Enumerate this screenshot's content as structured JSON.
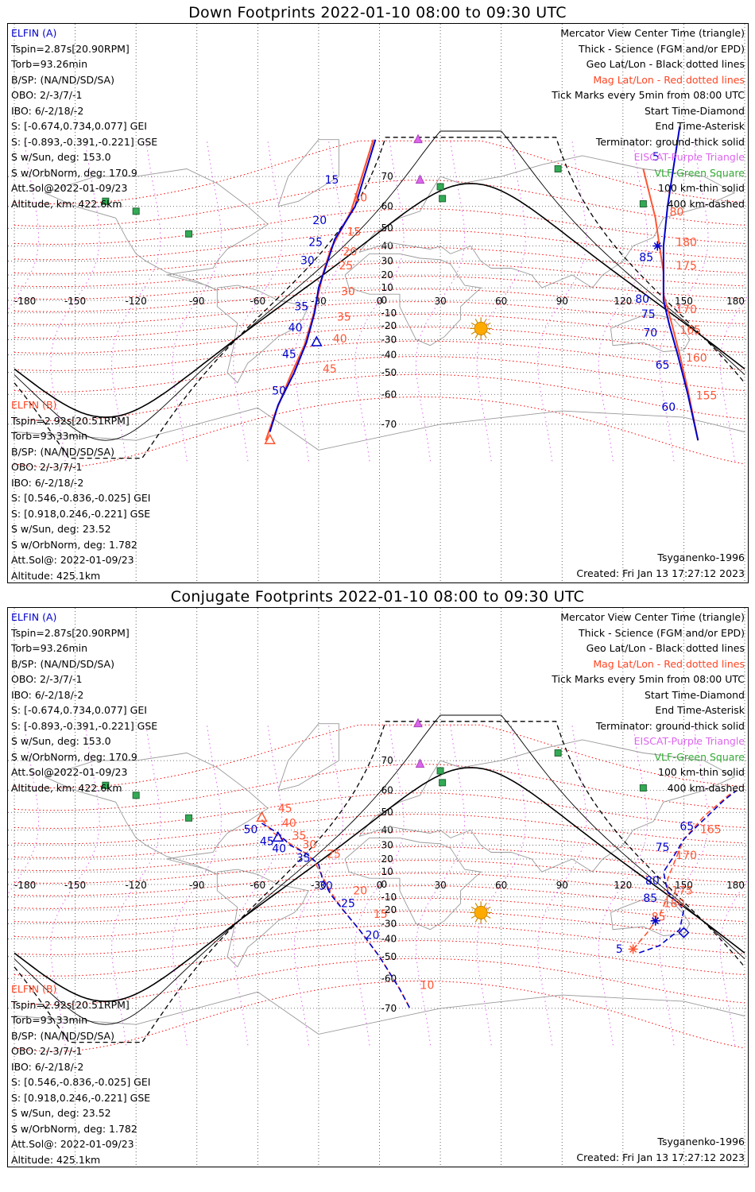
{
  "panels": [
    {
      "title": "Down Footprints 2022-01-10 08:00 to 09:30 UTC",
      "elfin_a": {
        "label": "ELFIN (A)",
        "lines": [
          "Tspin=2.87s[20.90RPM]",
          "Torb=93.26min",
          "B/SP: (NA/ND/SD/SA)",
          "OBO: 2/-3/7/-1",
          "IBO: 6/-2/18/-2",
          "S: [-0.674,0.734,0.077] GEI",
          "S: [-0.893,-0.391,-0.221] GSE",
          "S w/Sun, deg: 153.0",
          "S w/OrbNorm, deg: 170.9",
          "Att.Sol@2022-01-09/23",
          "Altitude, km: 422.6km"
        ]
      },
      "elfin_b": {
        "label": "ELFIN (B)",
        "lines": [
          "Tspin=2.92s[20.51RPM]",
          "Torb=93.33min",
          "B/SP: (NA/ND/SD/SA)",
          "OBO: 2/-3/7/-1",
          "IBO: 6/-2/18/-2",
          "S: [0.546,-0.836,-0.025] GEI",
          "S: [0.918,0.246,-0.221] GSE",
          "S w/Sun, deg: 23.52",
          "S w/OrbNorm, deg: 1.782",
          "Att.Sol@: 2022-01-09/23",
          "Altitude: 425.1km"
        ]
      },
      "legend": [
        {
          "text": "Mercator View Center Time (triangle)",
          "color": "black"
        },
        {
          "text": "Thick - Science (FGM and/or EPD)",
          "color": "black"
        },
        {
          "text": "Geo Lat/Lon - Black dotted lines",
          "color": "black"
        },
        {
          "text": "Mag Lat/Lon - Red dotted lines",
          "color": "red"
        },
        {
          "text": "Tick Marks every 5min from 08:00 UTC",
          "color": "black"
        },
        {
          "text": "Start Time-Diamond",
          "color": "black"
        },
        {
          "text": "End Time-Asterisk",
          "color": "black"
        },
        {
          "text": "Terminator: ground-thick solid",
          "color": "black"
        },
        {
          "text": "EISCAT-Purple Triangle",
          "color": "purple"
        },
        {
          "text": "VLF-Green Square",
          "color": "green"
        },
        {
          "text": "100 km-thin solid",
          "color": "black"
        },
        {
          "text": "400 km-dashed",
          "color": "black"
        }
      ],
      "model": "Tsyganenko-1996",
      "created": "Created: Fri Jan 13 17:27:12 2023",
      "a_tick_labels": [
        "15",
        "20",
        "25",
        "30",
        "35",
        "40",
        "45",
        "50",
        "85",
        "80",
        "75",
        "70",
        "65",
        "60",
        "5"
      ],
      "b_tick_labels": [
        "10",
        "15",
        "20",
        "25",
        "30",
        "35",
        "40",
        "45",
        "80",
        "180",
        "175",
        "170",
        "165",
        "160",
        "155"
      ]
    },
    {
      "title": "Conjugate Footprints 2022-01-10 08:00 to 09:30 UTC",
      "elfin_a": {
        "label": "ELFIN (A)",
        "lines": [
          "Tspin=2.87s[20.90RPM]",
          "Torb=93.26min",
          "B/SP: (NA/ND/SD/SA)",
          "OBO: 2/-3/7/-1",
          "IBO: 6/-2/18/-2",
          "S: [-0.674,0.734,0.077] GEI",
          "S: [-0.893,-0.391,-0.221] GSE",
          "S w/Sun, deg: 153.0",
          "S w/OrbNorm, deg: 170.9",
          "Att.Sol@2022-01-09/23",
          "Altitude, km: 422.6km"
        ]
      },
      "elfin_b": {
        "label": "ELFIN (B)",
        "lines": [
          "Tspin=2.92s[20.51RPM]",
          "Torb=93.33min",
          "B/SP: (NA/ND/SD/SA)",
          "OBO: 2/-3/7/-1",
          "IBO: 6/-2/18/-2",
          "S: [0.546,-0.836,-0.025] GEI",
          "S: [0.918,0.246,-0.221] GSE",
          "S w/Sun, deg: 23.52",
          "S w/OrbNorm, deg: 1.782",
          "Att.Sol@: 2022-01-09/23",
          "Altitude: 425.1km"
        ]
      },
      "legend": [
        {
          "text": "Mercator View Center Time (triangle)",
          "color": "black"
        },
        {
          "text": "Thick - Science (FGM and/or EPD)",
          "color": "black"
        },
        {
          "text": "Geo Lat/Lon - Black dotted lines",
          "color": "black"
        },
        {
          "text": "Mag Lat/Lon - Red dotted lines",
          "color": "red"
        },
        {
          "text": "Tick Marks every 5min from 08:00 UTC",
          "color": "black"
        },
        {
          "text": "Start Time-Diamond",
          "color": "black"
        },
        {
          "text": "End Time-Asterisk",
          "color": "black"
        },
        {
          "text": "Terminator: ground-thick solid",
          "color": "black"
        },
        {
          "text": "EISCAT-Purple Triangle",
          "color": "purple"
        },
        {
          "text": "VLF-Green Square",
          "color": "green"
        },
        {
          "text": "100 km-thin solid",
          "color": "black"
        },
        {
          "text": "400 km-dashed",
          "color": "black"
        }
      ],
      "model": "Tsyganenko-1996",
      "created": "Created: Fri Jan 13 17:27:12 2023",
      "a_tick_labels": [
        "50",
        "45",
        "40",
        "35",
        "30",
        "25",
        "20",
        "85",
        "80",
        "75",
        "65",
        "5"
      ],
      "b_tick_labels": [
        "45",
        "40",
        "35",
        "30",
        "25",
        "20",
        "15",
        "10",
        "180",
        "175",
        "170",
        "165",
        "85"
      ]
    }
  ],
  "axes": {
    "lon_ticks": [
      "-180",
      "-150",
      "-120",
      "-90",
      "-60",
      "-30",
      "0",
      "30",
      "60",
      "90",
      "120",
      "150",
      "180"
    ],
    "lat_ticks": [
      "70",
      "60",
      "50",
      "40",
      "30",
      "20",
      "10",
      "0",
      "-10",
      "-20",
      "-30",
      "-40",
      "-50",
      "-60",
      "-70"
    ]
  },
  "colors": {
    "elfin_a": "#0000cc",
    "elfin_b": "#ff5533",
    "mag_grid": "#ff0000",
    "geo_grid": "#000000",
    "eiscat": "#dd66ee",
    "vlf": "#33aa55",
    "sun": "#ffaa00",
    "coast": "#999999"
  }
}
